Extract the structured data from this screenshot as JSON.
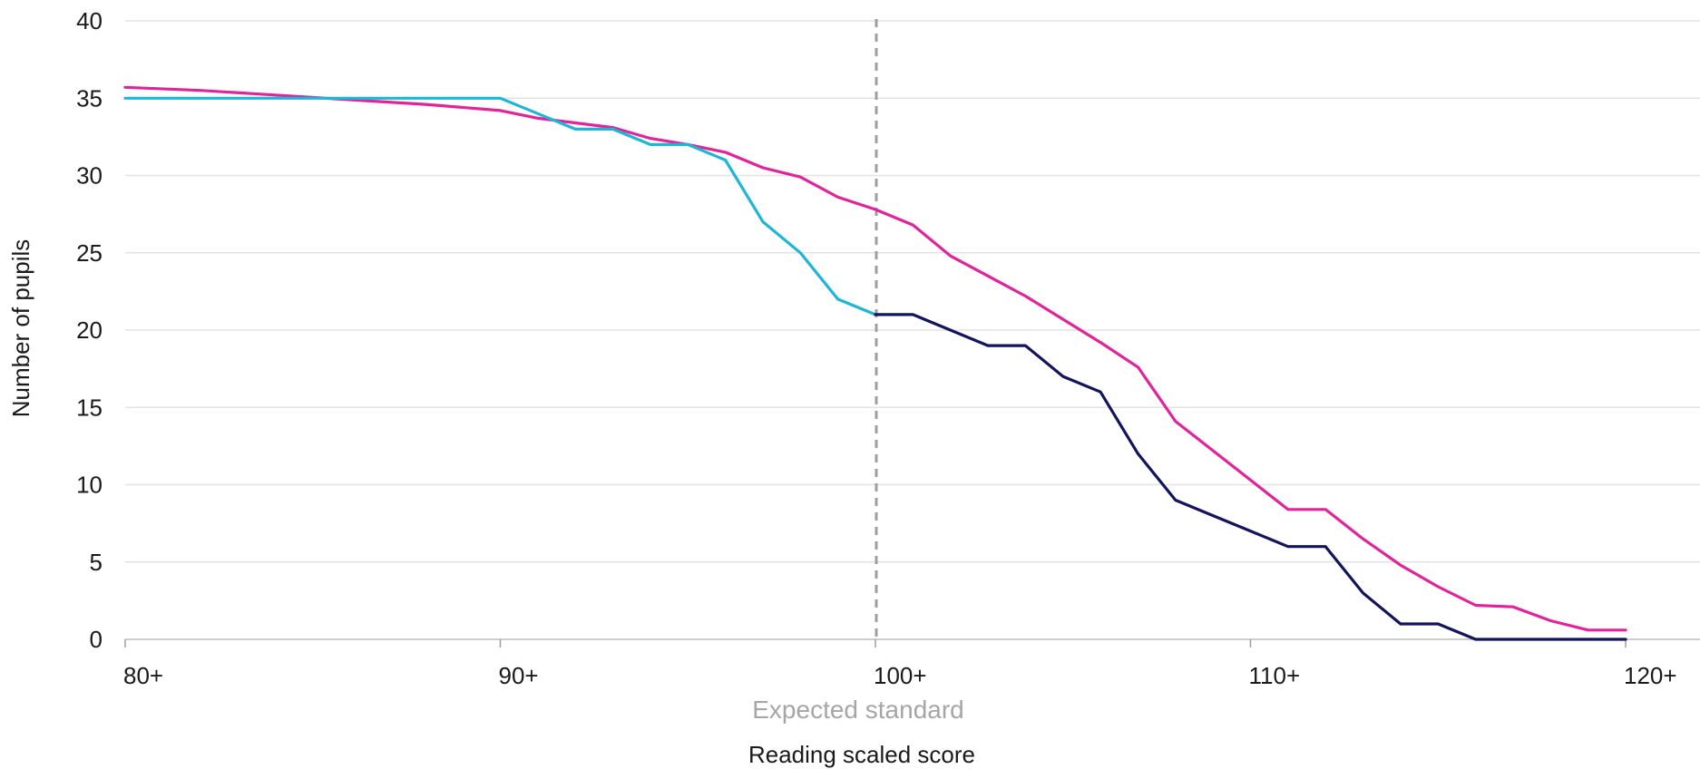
{
  "chart_data": {
    "type": "line",
    "xlabel": "Reading scaled score",
    "ylabel": "Number of pupils",
    "xlim": [
      80,
      122
    ],
    "ylim": [
      0,
      40
    ],
    "x_ticks": [
      {
        "value": 80,
        "label": "80+"
      },
      {
        "value": 90,
        "label": "90+"
      },
      {
        "value": 100,
        "label": "100+"
      },
      {
        "value": 110,
        "label": "110+"
      },
      {
        "value": 120,
        "label": "120+"
      }
    ],
    "y_ticks": [
      {
        "value": 0,
        "label": "0"
      },
      {
        "value": 5,
        "label": "5"
      },
      {
        "value": 10,
        "label": "10"
      },
      {
        "value": 15,
        "label": "15"
      },
      {
        "value": 20,
        "label": "20"
      },
      {
        "value": 25,
        "label": "25"
      },
      {
        "value": 30,
        "label": "30"
      },
      {
        "value": 35,
        "label": "35"
      },
      {
        "value": 40,
        "label": "40"
      }
    ],
    "grid": true,
    "reference_line": {
      "x": 100,
      "label": "Expected standard",
      "color": "#9e9e9e"
    },
    "series": [
      {
        "color": "#e0249a",
        "x": [
          80,
          82,
          84,
          86,
          88,
          90,
          91,
          92,
          93,
          94,
          95,
          96,
          97,
          98,
          99,
          100,
          101,
          102,
          103,
          104,
          105,
          106,
          107,
          108,
          109,
          110,
          111,
          112,
          113,
          114,
          115,
          116,
          117,
          118,
          119,
          120
        ],
        "values": [
          35.7,
          35.5,
          35.2,
          34.9,
          34.6,
          34.2,
          33.7,
          33.4,
          33.1,
          32.4,
          32.0,
          31.5,
          30.5,
          29.9,
          28.6,
          27.8,
          26.8,
          24.8,
          23.5,
          22.2,
          20.7,
          19.2,
          17.6,
          14.1,
          12.2,
          10.3,
          8.4,
          8.4,
          6.5,
          4.8,
          3.4,
          2.2,
          2.1,
          1.2,
          0.6,
          0.6
        ]
      },
      {
        "color": "#1fb6d6",
        "x": [
          80,
          90,
          91,
          92,
          93,
          94,
          95,
          96,
          97,
          98,
          99,
          100
        ],
        "values": [
          35,
          35,
          34,
          33,
          33,
          32,
          32,
          31,
          27,
          25,
          22,
          21
        ]
      },
      {
        "color": "#14145a",
        "x": [
          100,
          101,
          102,
          103,
          104,
          105,
          106,
          107,
          108,
          109,
          110,
          111,
          112,
          113,
          114,
          115,
          116,
          117,
          118,
          119,
          120
        ],
        "values": [
          21,
          21,
          20,
          19,
          19,
          17,
          16,
          12,
          9,
          8,
          7,
          6,
          6,
          3,
          1,
          1,
          0,
          0,
          0,
          0,
          0
        ]
      }
    ]
  }
}
